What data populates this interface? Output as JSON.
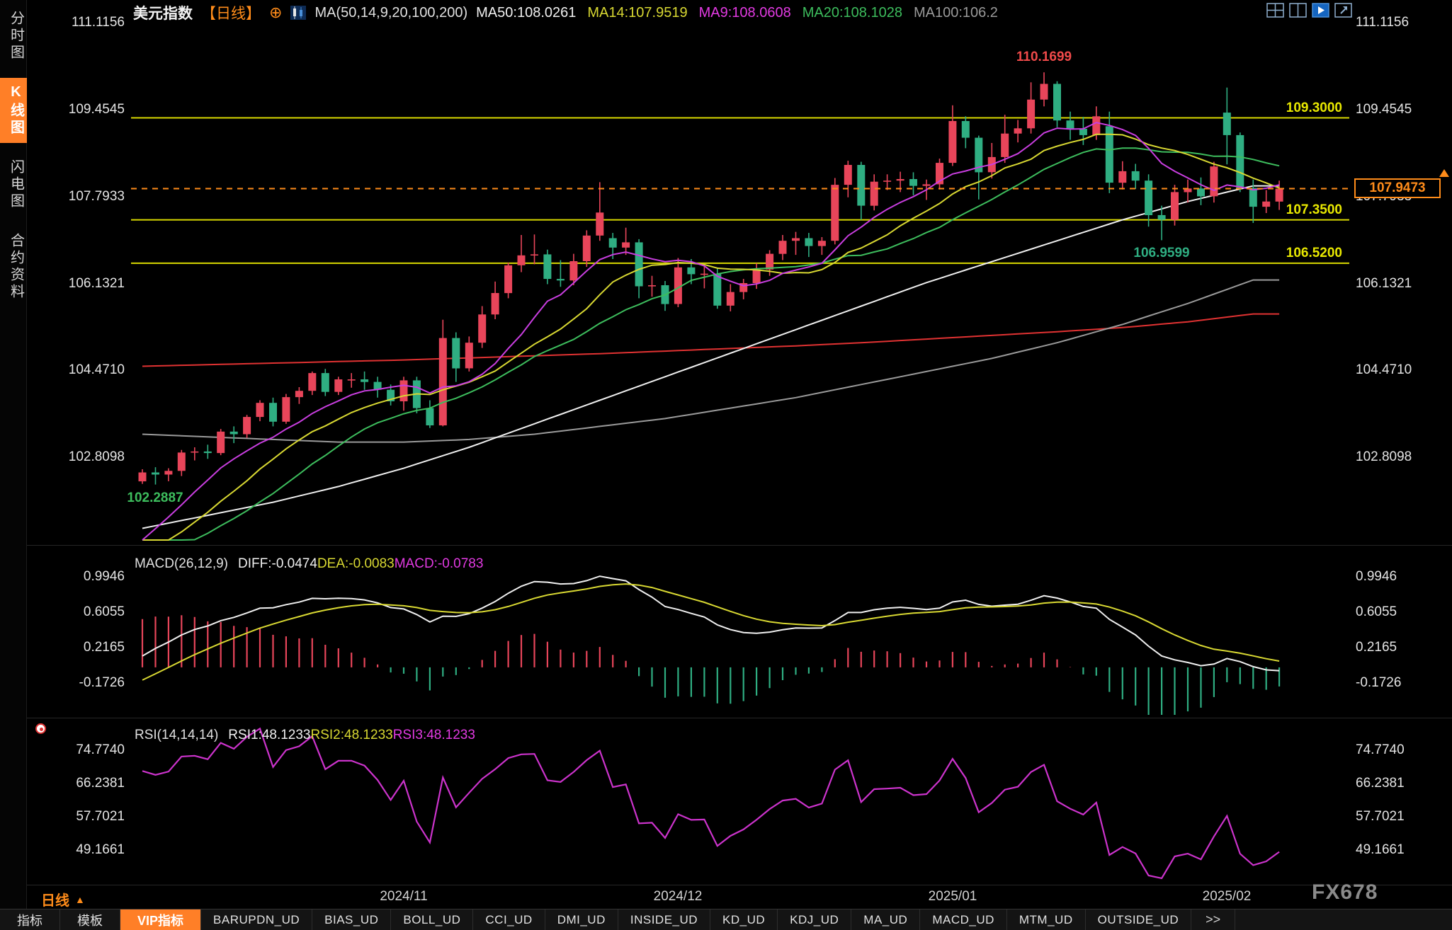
{
  "window": {
    "watermark": "FX678"
  },
  "sidebar": {
    "items": [
      {
        "label": "分时图",
        "active": false
      },
      {
        "label": "K线图",
        "active": true
      },
      {
        "label": "闪电图",
        "active": false
      },
      {
        "label": "合约资料",
        "active": false
      }
    ]
  },
  "header": {
    "symbol": "美元指数",
    "period_tag": "【日线】",
    "compare_icon": "⊕",
    "ma_summary": "MA(50,14,9,20,100,200)",
    "ma_values": [
      {
        "label": "MA50:108.0261",
        "color": "#f0f0f0"
      },
      {
        "label": "MA14:107.9519",
        "color": "#d8d832"
      },
      {
        "label": "MA9:108.0608",
        "color": "#e23ae2"
      },
      {
        "label": "MA20:108.1028",
        "color": "#3dbd5d"
      },
      {
        "label": "MA100:106.2",
        "color": "#9a9a9a"
      }
    ],
    "layout_icons": [
      "quad-layout",
      "dual-layout",
      "playback",
      "popout"
    ]
  },
  "macd_header": {
    "title": "MACD(26,12,9)",
    "values": [
      {
        "label": "DIFF:-0.0474",
        "color": "#f0f0f0"
      },
      {
        "label": "DEA:-0.0083",
        "color": "#d8d832"
      },
      {
        "label": "MACD:-0.0783",
        "color": "#e23ae2"
      }
    ]
  },
  "rsi_header": {
    "title": "RSI(14,14,14)",
    "values": [
      {
        "label": "RSI1:48.1233",
        "color": "#f0f0f0"
      },
      {
        "label": "RSI2:48.1233",
        "color": "#d8d832"
      },
      {
        "label": "RSI3:48.1233",
        "color": "#e23ae2"
      }
    ]
  },
  "period_selector": {
    "label": "日线",
    "arrow": "▲"
  },
  "bottom_tabs": {
    "left_tabs": [
      "指标",
      "模板"
    ],
    "vip_tab": "VIP指标",
    "indicator_tabs": [
      "BARUPDN_UD",
      "BIAS_UD",
      "BOLL_UD",
      "CCI_UD",
      "DMI_UD",
      "INSIDE_UD",
      "KD_UD",
      "KDJ_UD",
      "MA_UD",
      "MACD_UD",
      "MTM_UD",
      "OUTSIDE_UD"
    ],
    "more_label": ">>"
  },
  "chart_data": {
    "type": "candlestick",
    "title": "美元指数 日线",
    "price_axis": [
      "111.1156",
      "109.4545",
      "107.7933",
      "106.1321",
      "104.4710",
      "102.8098"
    ],
    "price_ylim": [
      101.2,
      111.08
    ],
    "macd_axis": [
      "0.9946",
      "0.6055",
      "0.2165",
      "-0.1726"
    ],
    "macd_ylim": [
      -0.538,
      1.2515
    ],
    "rsi_axis": [
      "74.7740",
      "66.2381",
      "57.7021",
      "49.1661"
    ],
    "rsi_ylim": [
      41.17,
      81.13
    ],
    "month_ticks": [
      {
        "index": 20,
        "label": "2024/11"
      },
      {
        "index": 41,
        "label": "2024/12"
      },
      {
        "index": 62,
        "label": "2025/01"
      },
      {
        "index": 83,
        "label": "2025/02"
      }
    ],
    "hlines": [
      {
        "value": 109.3,
        "label": "109.3000"
      },
      {
        "value": 107.35,
        "label": "107.3500"
      },
      {
        "value": 106.52,
        "label": "106.5200"
      }
    ],
    "current_price": {
      "value": 107.9473,
      "label": "107.9473"
    },
    "annotations": [
      {
        "text": "110.1699",
        "index": 69,
        "position": "above",
        "color": "#f04a4a"
      },
      {
        "text": "102.2887",
        "index": 1,
        "position": "below",
        "color": "#3dbd5d"
      },
      {
        "text": "106.9599",
        "index": 78,
        "position": "below",
        "color": "#2fae82"
      }
    ],
    "warmup_closes": [
      102.0,
      101.8,
      101.6,
      101.45,
      101.3,
      101.15,
      101.0,
      100.85,
      100.7,
      100.6,
      100.5,
      100.45,
      100.4,
      100.5,
      100.6,
      100.45,
      100.3,
      100.25,
      100.35,
      100.55,
      100.8,
      100.7,
      100.85,
      101.2,
      101.7,
      102.2
    ],
    "candles": [
      [
        102.35,
        102.58,
        102.3,
        102.52
      ],
      [
        102.52,
        102.62,
        102.2887,
        102.48
      ],
      [
        102.48,
        102.6,
        102.35,
        102.55
      ],
      [
        102.55,
        102.95,
        102.45,
        102.9
      ],
      [
        102.9,
        103.0,
        102.75,
        102.92
      ],
      [
        102.92,
        103.05,
        102.78,
        102.89
      ],
      [
        102.89,
        103.35,
        102.85,
        103.3
      ],
      [
        103.3,
        103.4,
        103.08,
        103.25
      ],
      [
        103.25,
        103.62,
        103.18,
        103.58
      ],
      [
        103.58,
        103.9,
        103.5,
        103.85
      ],
      [
        103.85,
        103.95,
        103.4,
        103.49
      ],
      [
        103.49,
        104.02,
        103.45,
        103.96
      ],
      [
        103.96,
        104.15,
        103.83,
        104.08
      ],
      [
        104.08,
        104.45,
        104.0,
        104.42
      ],
      [
        104.42,
        104.5,
        103.98,
        104.06
      ],
      [
        104.06,
        104.35,
        104.0,
        104.3
      ],
      [
        104.3,
        104.42,
        104.14,
        104.3
      ],
      [
        104.3,
        104.45,
        104.1,
        104.25
      ],
      [
        104.25,
        104.35,
        103.95,
        104.1
      ],
      [
        104.1,
        104.2,
        103.8,
        103.88
      ],
      [
        103.88,
        104.35,
        103.7,
        104.28
      ],
      [
        104.28,
        104.35,
        103.65,
        103.75
      ],
      [
        103.75,
        103.9,
        103.37,
        103.42
      ],
      [
        103.42,
        105.44,
        103.4,
        105.09
      ],
      [
        105.09,
        105.2,
        104.25,
        104.51
      ],
      [
        104.51,
        105.12,
        104.45,
        105.0
      ],
      [
        105.0,
        105.7,
        104.9,
        105.54
      ],
      [
        105.54,
        106.17,
        105.45,
        105.95
      ],
      [
        105.95,
        106.53,
        105.85,
        106.48
      ],
      [
        106.48,
        107.06,
        106.35,
        106.67
      ],
      [
        106.67,
        107.07,
        106.5,
        106.69
      ],
      [
        106.69,
        106.78,
        106.12,
        106.22
      ],
      [
        106.22,
        106.58,
        106.07,
        106.19
      ],
      [
        106.19,
        106.7,
        106.1,
        106.56
      ],
      [
        106.56,
        107.15,
        106.45,
        107.05
      ],
      [
        107.05,
        108.07,
        106.95,
        107.49
      ],
      [
        107.0,
        107.1,
        106.6,
        106.82
      ],
      [
        106.82,
        107.2,
        106.68,
        106.92
      ],
      [
        106.92,
        106.98,
        105.85,
        106.08
      ],
      [
        106.08,
        106.28,
        105.88,
        106.1
      ],
      [
        106.1,
        106.18,
        105.61,
        105.74
      ],
      [
        105.74,
        106.62,
        105.68,
        106.44
      ],
      [
        106.44,
        106.6,
        106.12,
        106.31
      ],
      [
        106.31,
        106.48,
        106.04,
        106.32
      ],
      [
        106.32,
        106.42,
        105.65,
        105.71
      ],
      [
        105.71,
        106.12,
        105.6,
        105.97
      ],
      [
        105.97,
        106.22,
        105.83,
        106.14
      ],
      [
        106.14,
        106.52,
        106.03,
        106.4
      ],
      [
        106.4,
        106.77,
        106.28,
        106.7
      ],
      [
        106.7,
        107.06,
        106.58,
        106.95
      ],
      [
        106.95,
        107.12,
        106.68,
        107.0
      ],
      [
        107.0,
        107.1,
        106.64,
        106.85
      ],
      [
        106.85,
        107.02,
        106.68,
        106.95
      ],
      [
        106.95,
        108.15,
        106.88,
        108.02
      ],
      [
        108.02,
        108.48,
        107.78,
        108.4
      ],
      [
        108.4,
        108.46,
        107.35,
        107.62
      ],
      [
        107.62,
        108.22,
        107.53,
        108.08
      ],
      [
        108.08,
        108.22,
        107.92,
        108.1
      ],
      [
        108.1,
        108.27,
        107.88,
        108.13
      ],
      [
        108.13,
        108.26,
        107.82,
        108.0
      ],
      [
        108.0,
        108.12,
        107.73,
        108.03
      ],
      [
        108.03,
        108.52,
        107.93,
        108.44
      ],
      [
        108.44,
        109.54,
        108.38,
        109.24
      ],
      [
        109.24,
        109.33,
        108.72,
        108.92
      ],
      [
        108.92,
        108.96,
        107.74,
        108.26
      ],
      [
        108.26,
        108.82,
        108.14,
        108.55
      ],
      [
        108.55,
        109.36,
        108.44,
        109.0
      ],
      [
        109.0,
        109.26,
        108.83,
        109.1
      ],
      [
        109.1,
        109.98,
        109.0,
        109.65
      ],
      [
        109.65,
        110.1699,
        109.52,
        109.95
      ],
      [
        109.95,
        110.0,
        109.12,
        109.25
      ],
      [
        109.25,
        109.42,
        108.88,
        109.09
      ],
      [
        109.09,
        109.32,
        108.78,
        108.97
      ],
      [
        108.97,
        109.52,
        108.88,
        109.33
      ],
      [
        109.14,
        109.42,
        107.86,
        108.06
      ],
      [
        108.06,
        108.47,
        107.93,
        108.28
      ],
      [
        108.28,
        108.42,
        107.94,
        108.1
      ],
      [
        108.1,
        108.22,
        107.22,
        107.44
      ],
      [
        107.44,
        107.62,
        106.9599,
        107.35
      ],
      [
        107.35,
        108.02,
        107.24,
        107.88
      ],
      [
        107.88,
        108.12,
        107.68,
        107.95
      ],
      [
        107.95,
        108.16,
        107.63,
        107.8
      ],
      [
        107.8,
        108.46,
        107.68,
        108.37
      ],
      [
        109.4,
        109.88,
        108.41,
        108.97
      ],
      [
        108.97,
        109.02,
        107.88,
        107.96
      ],
      [
        107.96,
        108.12,
        107.29,
        107.6
      ],
      [
        107.6,
        107.92,
        107.48,
        107.7
      ],
      [
        107.7,
        108.1,
        107.54,
        107.9473
      ]
    ],
    "ma_sampled": {
      "step": 5,
      "ma50": [
        101.45,
        101.7,
        101.95,
        102.25,
        102.6,
        103.0,
        103.45,
        103.9,
        104.35,
        104.8,
        105.25,
        105.7,
        106.15,
        106.55,
        106.95,
        107.35,
        107.7,
        108.0
      ],
      "ma100": [
        103.25,
        103.2,
        103.15,
        103.1,
        103.1,
        103.15,
        103.25,
        103.4,
        103.55,
        103.75,
        103.95,
        104.2,
        104.45,
        104.7,
        105.0,
        105.35,
        105.75,
        106.2
      ],
      "ma200": [
        104.55,
        104.58,
        104.61,
        104.64,
        104.67,
        104.71,
        104.75,
        104.79,
        104.84,
        104.89,
        104.94,
        105.0,
        105.07,
        105.14,
        105.21,
        105.29,
        105.4,
        105.55
      ]
    },
    "colors": {
      "up": "#e8455a",
      "down": "#2fae82",
      "ma9": "#c93ee0",
      "ma14": "#d8d832",
      "ma20": "#3dbd5d",
      "ma50": "#f0f0f0",
      "ma100": "#9a9a9a",
      "ma200": "#e03232",
      "diff": "#f0f0f0",
      "dea": "#d8d832",
      "rsi": "#cc33cc",
      "hline": "#d8d800",
      "current": "#ff8c1a"
    }
  }
}
